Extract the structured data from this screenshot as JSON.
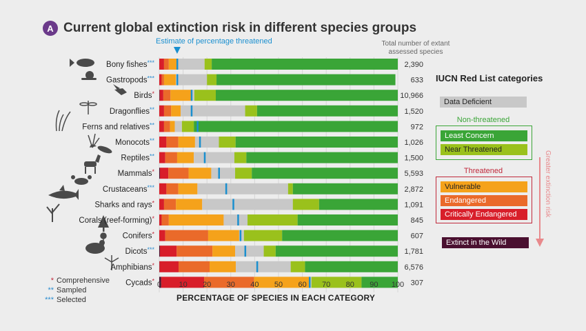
{
  "title": "Current global extinction risk in different species groups",
  "badge": "A",
  "estimate_label": "Estimate of percentage threatened",
  "total_header": "Total number of extant assessed species",
  "legend": {
    "title": "IUCN Red List categories",
    "data_deficient": "Data Deficient",
    "non_threatened_label": "Non-threatened",
    "least_concern": "Least Concern",
    "near_threatened": "Near Threatened",
    "threatened_label": "Threatened",
    "vulnerable": "Vulnerable",
    "endangered": "Endangered",
    "critically_endangered": "Critically Endangered",
    "extinct_in_wild": "Extinct in the Wild",
    "risk_arrow": "Greater extinction risk"
  },
  "notes": [
    {
      "stars": "*",
      "text": "Comprehensive"
    },
    {
      "stars": "**",
      "text": "Sampled"
    },
    {
      "stars": "***",
      "text": "Selected"
    }
  ],
  "colors": {
    "ew": "#4a1030",
    "cr": "#d81e2a",
    "en": "#ea6a2a",
    "vu": "#f5a21b",
    "dd": "#c8c8c8",
    "nt": "#9ac11c",
    "lc": "#3aa537",
    "estimate": "#1a8fcf",
    "star": "#2b8ccf",
    "star_single": "#c0283a",
    "non_threatened_frame": "#3aa537",
    "threatened_frame": "#c0283a"
  },
  "chart_data": {
    "type": "bar",
    "orientation": "horizontal",
    "stacked": true,
    "xlabel": "PERCENTAGE OF SPECIES IN EACH CATEGORY",
    "xlim": [
      0,
      100
    ],
    "xticks": [
      0,
      10,
      20,
      30,
      40,
      50,
      60,
      70,
      80,
      90,
      100
    ],
    "categories": [
      {
        "name": "Bony fishes",
        "stars": "***",
        "total": "2,390",
        "estimate": 7.5
      },
      {
        "name": "Gastropods",
        "stars": "***",
        "total": "633",
        "estimate": 7.5
      },
      {
        "name": "Birds",
        "stars": "*",
        "total": "10,966",
        "estimate": 13.5
      },
      {
        "name": "Dragonflies",
        "stars": "**",
        "total": "1,520",
        "estimate": 13.5
      },
      {
        "name": "Ferns and relatives",
        "stars": "**",
        "total": "972",
        "estimate": 16
      },
      {
        "name": "Monocots",
        "stars": "**",
        "total": "1,026",
        "estimate": 17
      },
      {
        "name": "Reptiles",
        "stars": "**",
        "total": "1,500",
        "estimate": 19
      },
      {
        "name": "Mammals",
        "stars": "*",
        "total": "5,593",
        "estimate": 25
      },
      {
        "name": "Crustaceans",
        "stars": "***",
        "total": "2,872",
        "estimate": 28
      },
      {
        "name": "Sharks and rays",
        "stars": "*",
        "total": "1,091",
        "estimate": 31
      },
      {
        "name": "Corals (reef-forming)",
        "stars": "*",
        "total": "845",
        "estimate": 33
      },
      {
        "name": "Conifers",
        "stars": "*",
        "total": "607",
        "estimate": 34
      },
      {
        "name": "Dicots",
        "stars": "***",
        "total": "1,781",
        "estimate": 36
      },
      {
        "name": "Amphibians",
        "stars": "*",
        "total": "6,576",
        "estimate": 41
      },
      {
        "name": "Cycads",
        "stars": "*",
        "total": "307",
        "estimate": 63
      }
    ],
    "series": [
      {
        "name": "Extinct in the Wild",
        "key": "ew",
        "values": [
          0,
          0,
          0.2,
          0,
          0,
          0,
          0,
          0.3,
          0,
          0,
          0,
          0,
          0.3,
          0.1,
          0.8
        ]
      },
      {
        "name": "Critically Endangered",
        "key": "cr",
        "values": [
          2,
          1,
          1.5,
          2,
          2,
          3,
          2.5,
          3.5,
          3,
          2,
          1,
          2.5,
          7,
          8,
          18
        ]
      },
      {
        "name": "Endangered",
        "key": "en",
        "values": [
          2,
          1,
          3,
          3,
          2.5,
          5,
          5,
          8.5,
          5,
          5,
          3,
          18,
          15,
          13,
          21
        ]
      },
      {
        "name": "Vulnerable",
        "key": "vu",
        "values": [
          4,
          5,
          9,
          4,
          2,
          7,
          7,
          9.5,
          8,
          11,
          23,
          13,
          9.5,
          11,
          23
        ]
      },
      {
        "name": "Data Deficient",
        "key": "dd",
        "values": [
          11,
          13,
          1,
          27,
          3,
          10,
          17,
          10,
          38,
          38,
          10,
          2,
          12,
          23,
          1
        ]
      },
      {
        "name": "Near Threatened",
        "key": "nt",
        "values": [
          3,
          4,
          9,
          5,
          5,
          7,
          5,
          7,
          2,
          11,
          21,
          16,
          5,
          6,
          21
        ]
      },
      {
        "name": "Least Concern",
        "key": "lc",
        "values": [
          78,
          75,
          76.3,
          59,
          85.5,
          68,
          63.5,
          61.2,
          44,
          33,
          42,
          48.5,
          51.2,
          38.9,
          15.2
        ]
      }
    ]
  }
}
